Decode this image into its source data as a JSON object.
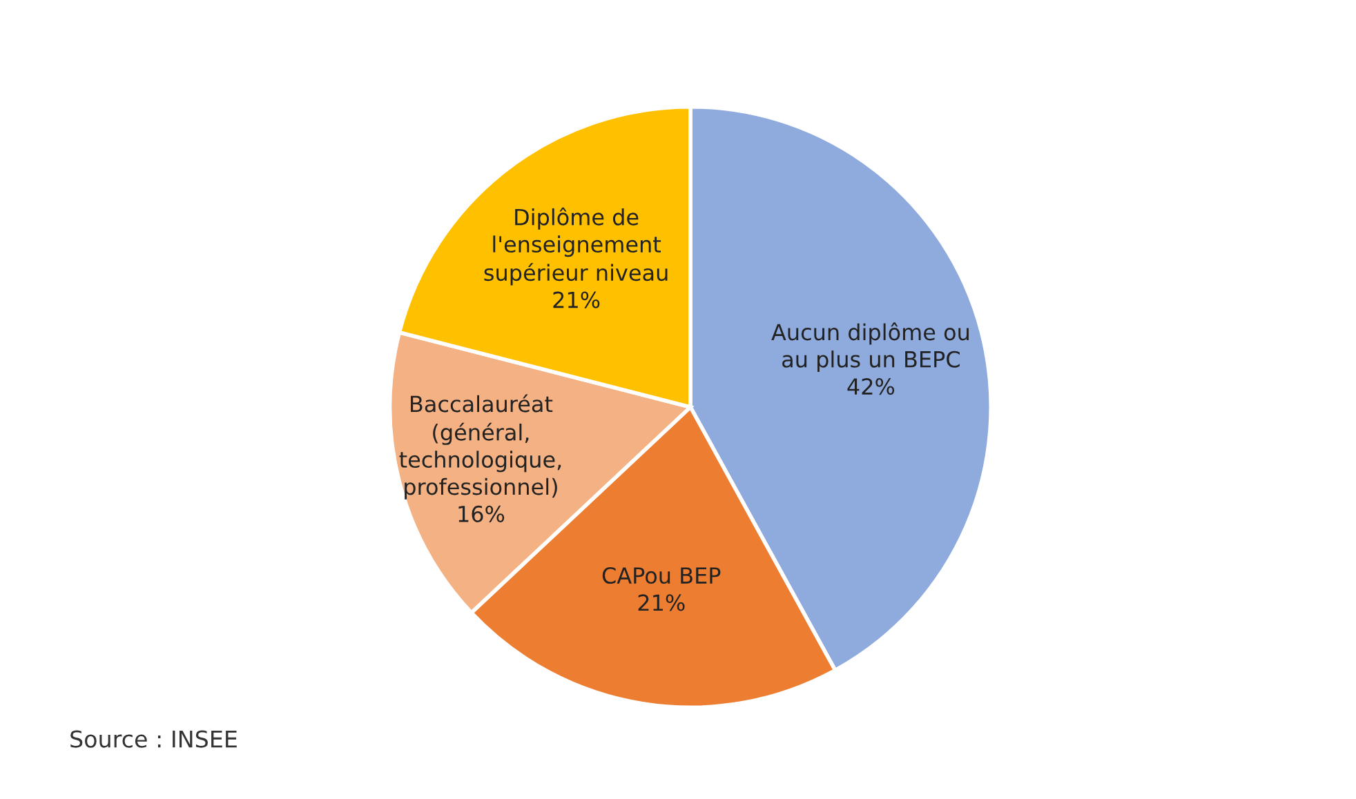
{
  "chart_data": {
    "type": "pie",
    "categories": [
      "Aucun diplôme ou\nau plus un BEPC",
      "CAPou BEP",
      "Baccalauréat\n(général,\ntechnologique,\nprofessionnel)",
      "Diplôme de\nl'enseignement\nsupérieur niveau"
    ],
    "values": [
      42,
      21,
      16,
      21
    ],
    "value_labels": [
      "42%",
      "21%",
      "16%",
      "21%"
    ],
    "colors": [
      "#8faadc",
      "#ed7d31",
      "#f4b183",
      "#ffc000"
    ],
    "annotations": [
      "Source : INSEE"
    ]
  }
}
